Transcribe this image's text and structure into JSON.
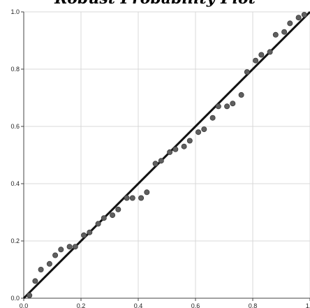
{
  "chart_data": {
    "type": "scatter",
    "title": "Robust Probability Plot",
    "xlabel": "",
    "ylabel": "",
    "xlim": [
      0,
      1
    ],
    "ylim": [
      0,
      1
    ],
    "x_ticks": [
      "0.0",
      "0.2",
      "0.4",
      "0.6",
      "0.8",
      "1.0"
    ],
    "y_ticks": [
      "0.0",
      "0.2",
      "0.4",
      "0.6",
      "0.8",
      "1.0"
    ],
    "grid": true,
    "reference_line": {
      "from": [
        0,
        0
      ],
      "to": [
        1,
        1
      ],
      "color": "#111111"
    },
    "point_color": "#5f5f5f",
    "series": [
      {
        "points": [
          [
            0.02,
            0.01
          ],
          [
            0.04,
            0.06
          ],
          [
            0.06,
            0.1
          ],
          [
            0.09,
            0.12
          ],
          [
            0.11,
            0.15
          ],
          [
            0.13,
            0.17
          ],
          [
            0.16,
            0.18
          ],
          [
            0.18,
            0.18
          ],
          [
            0.21,
            0.22
          ],
          [
            0.23,
            0.23
          ],
          [
            0.26,
            0.26
          ],
          [
            0.28,
            0.28
          ],
          [
            0.31,
            0.29
          ],
          [
            0.33,
            0.31
          ],
          [
            0.36,
            0.35
          ],
          [
            0.38,
            0.35
          ],
          [
            0.41,
            0.35
          ],
          [
            0.43,
            0.37
          ],
          [
            0.46,
            0.47
          ],
          [
            0.48,
            0.48
          ],
          [
            0.51,
            0.51
          ],
          [
            0.53,
            0.52
          ],
          [
            0.56,
            0.53
          ],
          [
            0.58,
            0.55
          ],
          [
            0.61,
            0.58
          ],
          [
            0.63,
            0.59
          ],
          [
            0.66,
            0.63
          ],
          [
            0.68,
            0.67
          ],
          [
            0.71,
            0.67
          ],
          [
            0.73,
            0.68
          ],
          [
            0.76,
            0.71
          ],
          [
            0.78,
            0.79
          ],
          [
            0.81,
            0.83
          ],
          [
            0.83,
            0.85
          ],
          [
            0.86,
            0.86
          ],
          [
            0.88,
            0.92
          ],
          [
            0.91,
            0.93
          ],
          [
            0.93,
            0.96
          ],
          [
            0.96,
            0.98
          ],
          [
            0.98,
            0.99
          ]
        ]
      }
    ]
  }
}
